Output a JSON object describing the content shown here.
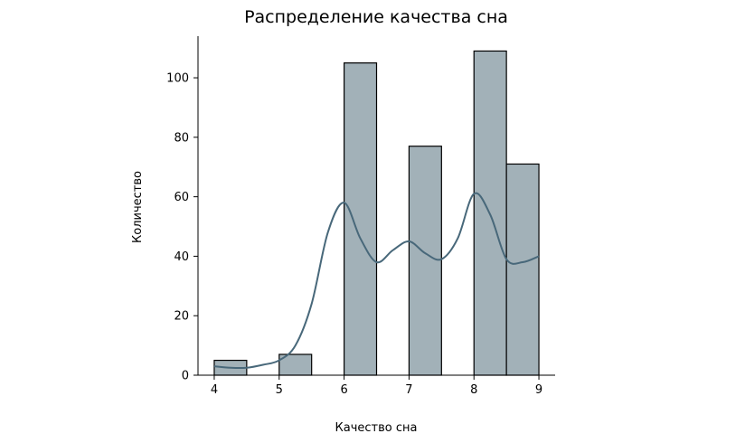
{
  "chart_data": {
    "type": "bar",
    "title": "Распределение качества сна",
    "xlabel": "Качество сна",
    "ylabel": "Количество",
    "xlim": [
      3.75,
      9.25
    ],
    "ylim": [
      0,
      114
    ],
    "xticks": [
      "4",
      "5",
      "6",
      "7",
      "8",
      "9"
    ],
    "yticks": [
      "0",
      "20",
      "40",
      "60",
      "80",
      "100"
    ],
    "bins": [
      {
        "x0": 4.0,
        "x1": 4.5,
        "count": 5
      },
      {
        "x0": 5.0,
        "x1": 5.5,
        "count": 7
      },
      {
        "x0": 6.0,
        "x1": 6.5,
        "count": 105
      },
      {
        "x0": 7.0,
        "x1": 7.5,
        "count": 77
      },
      {
        "x0": 8.0,
        "x1": 8.5,
        "count": 109
      },
      {
        "x0": 8.5,
        "x1": 9.0,
        "count": 71
      }
    ],
    "kde": {
      "x": [
        4.0,
        4.25,
        4.5,
        4.75,
        5.0,
        5.25,
        5.5,
        5.75,
        6.0,
        6.25,
        6.5,
        6.75,
        7.0,
        7.25,
        7.5,
        7.75,
        8.0,
        8.25,
        8.5,
        8.75,
        9.0
      ],
      "y": [
        3,
        2.5,
        2.5,
        3.5,
        5,
        10,
        24,
        48,
        58,
        46,
        38,
        42,
        45,
        41,
        39,
        46,
        61,
        54,
        39,
        38,
        40
      ]
    },
    "bar_color": "#a2b1b8",
    "bar_edge": "#000000",
    "kde_color": "#48687a",
    "grid": false,
    "legend": "none"
  }
}
